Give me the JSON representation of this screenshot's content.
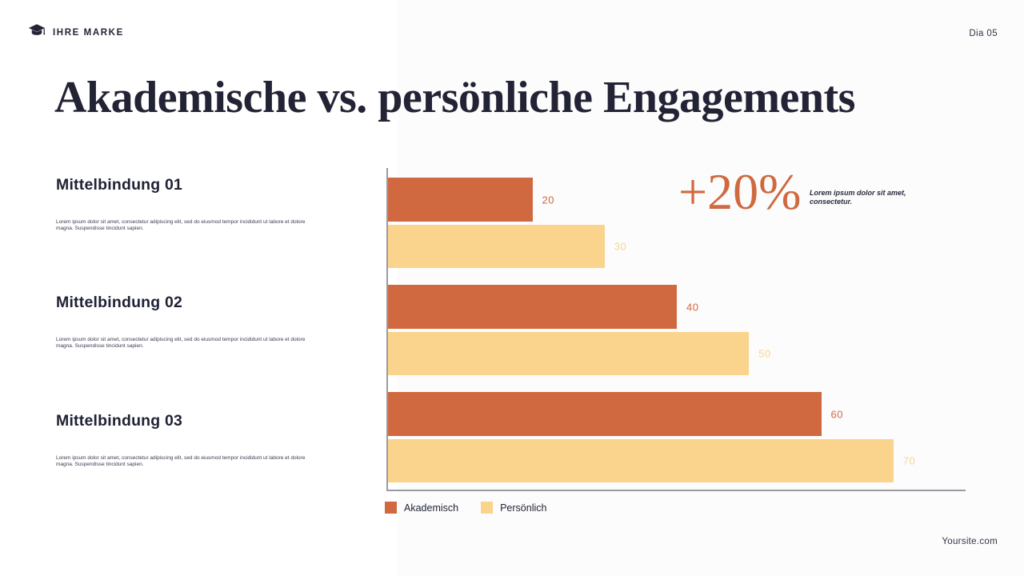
{
  "header": {
    "brand": "IHRE MARKE",
    "slide_number": "Dia 05"
  },
  "title": "Akademische vs. persönliche Engagements",
  "sections": [
    {
      "heading": "Mittelbindung 01",
      "body": "Lorem ipsum dolor sit amet, consectetur adipiscing elit, sed do eiusmod tempor incididunt ut labore et dolore magna. Suspendisse tincidunt sapien."
    },
    {
      "heading": "Mittelbindung 02",
      "body": "Lorem ipsum dolor sit amet, consectetur adipiscing elit, sed do eiusmod tempor incididunt ut labore et dolore magna. Suspendisse tincidunt sapien."
    },
    {
      "heading": "Mittelbindung 03",
      "body": "Lorem ipsum dolor sit amet, consectetur adipiscing elit, sed do eiusmod tempor incididunt ut labore et dolore magna. Suspendisse tincidunt sapien."
    }
  ],
  "highlight": {
    "value": "+20%",
    "caption": "Lorem ipsum dolor sit amet, consectetur."
  },
  "chart_data": {
    "type": "bar",
    "orientation": "horizontal",
    "title": "",
    "categories": [
      "Mittelbindung 01",
      "Mittelbindung 02",
      "Mittelbindung 03"
    ],
    "series": [
      {
        "name": "Akademisch",
        "slug": "akademisch",
        "values": [
          20,
          40,
          60
        ],
        "color": "#d0693f"
      },
      {
        "name": "Persönlich",
        "slug": "persoenlich",
        "values": [
          30,
          50,
          70
        ],
        "color": "#fad48c"
      }
    ],
    "xlim": [
      0,
      80
    ],
    "grid": false,
    "legend_position": "bottom",
    "value_labels": true
  },
  "footer": {
    "website": "Yoursite.com"
  },
  "colors": {
    "accent_orange": "#d0693f",
    "accent_yellow": "#fad48c",
    "text_dark": "#232336",
    "axis_gray": "#9a9aa2"
  }
}
